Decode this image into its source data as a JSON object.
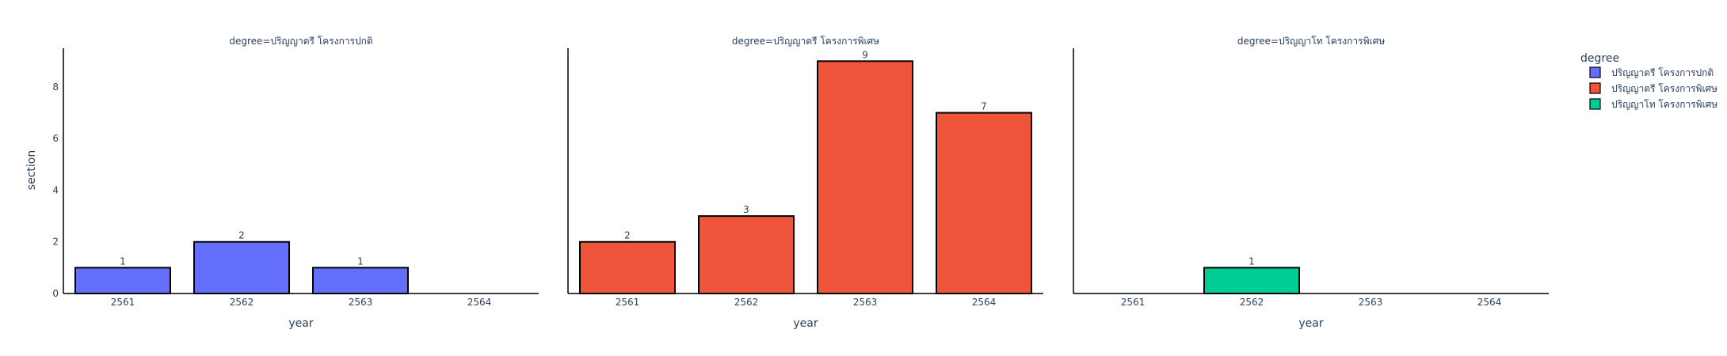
{
  "chart_data": {
    "type": "bar",
    "x_label": "year",
    "y_label": "section",
    "categories": [
      "2561",
      "2562",
      "2563",
      "2564"
    ],
    "ylim": [
      0,
      9.5
    ],
    "y_ticks": [
      "0",
      "2",
      "4",
      "6",
      "8"
    ],
    "y_tick_values": [
      0,
      2,
      4,
      6,
      8
    ],
    "legend": {
      "title": "degree",
      "placement": "top-right"
    },
    "facets": [
      {
        "title": "degree=ปริญญาตรี โครงการปกติ",
        "name": "ปริญญาตรี โครงการปกติ",
        "color": "#636efa",
        "values": [
          1,
          2,
          1,
          null
        ]
      },
      {
        "title": "degree=ปริญญาตรี โครงการพิเศษ",
        "name": "ปริญญาตรี โครงการพิเศษ",
        "color": "#ef553b",
        "values": [
          2,
          3,
          9,
          7
        ]
      },
      {
        "title": "degree=ปริญญาโท โครงการพิเศษ",
        "name": "ปริญญาโท โครงการพิเศษ",
        "color": "#00cc96",
        "values": [
          null,
          1,
          null,
          null
        ]
      }
    ]
  }
}
